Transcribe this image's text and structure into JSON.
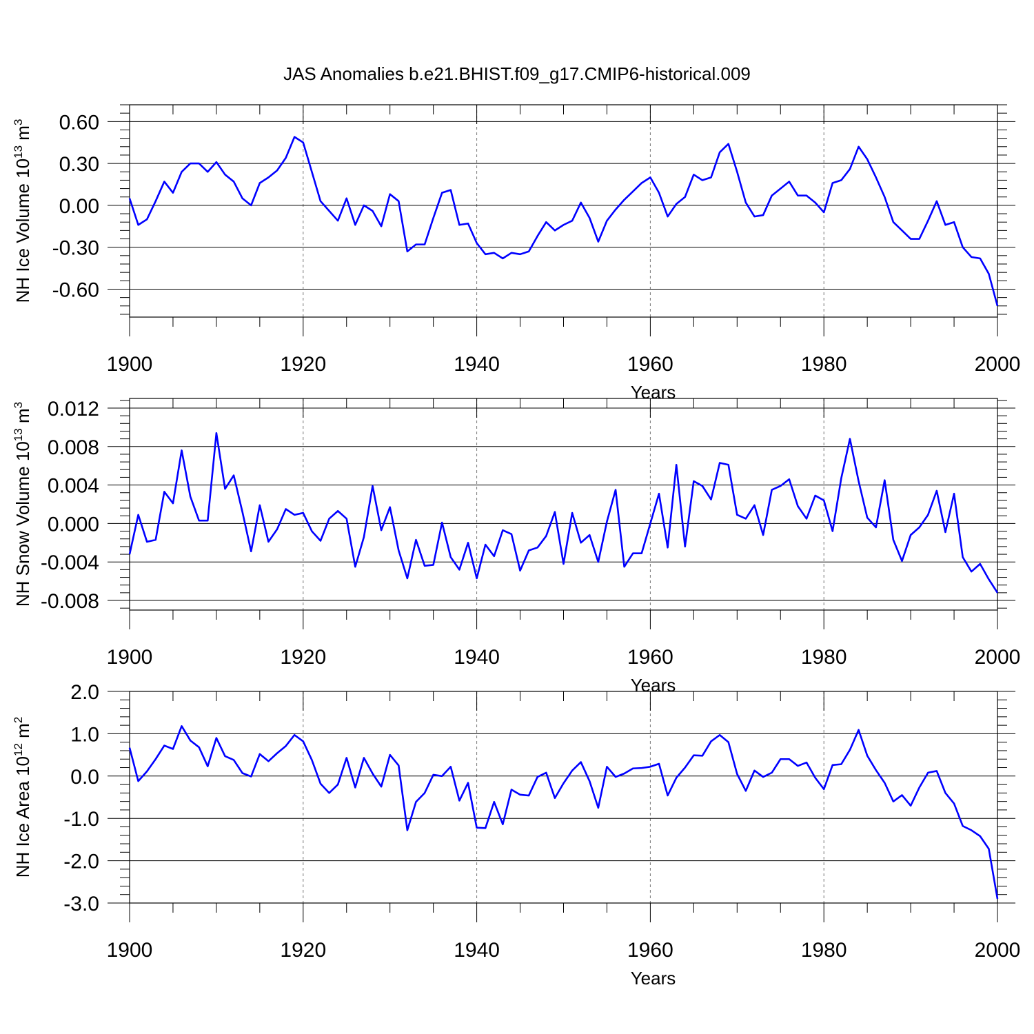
{
  "title": "JAS Anomalies b.e21.BHIST.f09_g17.CMIP6-historical.009",
  "colors": {
    "series": "#0000ff",
    "axis": "#000000",
    "grid": "#777777"
  },
  "chart_data": [
    {
      "type": "line",
      "name": "ice-volume",
      "ylabel": "NH Ice Volume 10",
      "ylabel_sup": "13",
      "ylabel_unit": " m",
      "ylabel_unit_sup": "3",
      "xlabel": "Years",
      "xlim": [
        1900,
        2000
      ],
      "ylim": [
        -0.8,
        0.72
      ],
      "x_ticks": [
        1900,
        1920,
        1940,
        1960,
        1980,
        2000
      ],
      "x_tick_labels": [
        "1900",
        "1920",
        "1940",
        "1960",
        "1980",
        "2000"
      ],
      "y_ticks": [
        0.6,
        0.3,
        0.0,
        -0.3,
        -0.6
      ],
      "y_tick_labels": [
        "0.60",
        "0.30",
        "0.00",
        "-0.30",
        "-0.60"
      ],
      "y_minor_step": 0.06,
      "start_year": 1900,
      "values": [
        0.05,
        -0.14,
        -0.1,
        0.03,
        0.17,
        0.09,
        0.24,
        0.3,
        0.3,
        0.24,
        0.31,
        0.22,
        0.17,
        0.05,
        0.0,
        0.16,
        0.2,
        0.25,
        0.34,
        0.49,
        0.45,
        0.24,
        0.03,
        -0.04,
        -0.11,
        0.05,
        -0.14,
        0.0,
        -0.04,
        -0.15,
        0.08,
        0.03,
        -0.33,
        -0.28,
        -0.28,
        -0.09,
        0.09,
        0.11,
        -0.14,
        -0.13,
        -0.27,
        -0.35,
        -0.34,
        -0.38,
        -0.34,
        -0.35,
        -0.33,
        -0.22,
        -0.12,
        -0.18,
        -0.14,
        -0.11,
        0.02,
        -0.09,
        -0.26,
        -0.11,
        -0.03,
        0.04,
        0.1,
        0.16,
        0.2,
        0.09,
        -0.08,
        0.01,
        0.06,
        0.22,
        0.18,
        0.2,
        0.38,
        0.44,
        0.24,
        0.02,
        -0.08,
        -0.07,
        0.07,
        0.12,
        0.17,
        0.07,
        0.07,
        0.02,
        -0.05,
        0.16,
        0.18,
        0.26,
        0.42,
        0.33,
        0.2,
        0.06,
        -0.12,
        -0.18,
        -0.24,
        -0.24,
        -0.11,
        0.03,
        -0.14,
        -0.12,
        -0.3,
        -0.37,
        -0.38,
        -0.49,
        -0.72
      ]
    },
    {
      "type": "line",
      "name": "snow-volume",
      "ylabel": "NH Snow Volume 10",
      "ylabel_sup": "13",
      "ylabel_unit": " m",
      "ylabel_unit_sup": "3",
      "xlabel": "Years",
      "xlim": [
        1900,
        2000
      ],
      "ylim": [
        -0.009,
        0.013
      ],
      "x_ticks": [
        1900,
        1920,
        1940,
        1960,
        1980,
        2000
      ],
      "x_tick_labels": [
        "1900",
        "1920",
        "1940",
        "1960",
        "1980",
        "2000"
      ],
      "y_ticks": [
        0.012,
        0.008,
        0.004,
        0.0,
        -0.004,
        -0.008
      ],
      "y_tick_labels": [
        "0.012",
        "0.008",
        "0.004",
        "0.000",
        "-0.004",
        "-0.008"
      ],
      "y_minor_step": 0.0008,
      "start_year": 1900,
      "values": [
        -0.0032,
        0.0009,
        -0.0019,
        -0.0017,
        0.0033,
        0.0021,
        0.0076,
        0.0028,
        0.0003,
        0.0003,
        0.0094,
        0.0036,
        0.005,
        0.0012,
        -0.0029,
        0.0019,
        -0.0019,
        -0.0006,
        0.0015,
        0.0009,
        0.0011,
        -0.0008,
        -0.0018,
        0.0005,
        0.0013,
        0.0005,
        -0.0045,
        -0.0014,
        0.0039,
        -0.0007,
        0.0017,
        -0.0028,
        -0.0057,
        -0.0017,
        -0.0044,
        -0.0043,
        0.0001,
        -0.0035,
        -0.0048,
        -0.002,
        -0.0057,
        -0.0022,
        -0.0034,
        -0.0007,
        -0.0011,
        -0.0049,
        -0.0028,
        -0.0025,
        -0.0013,
        0.0012,
        -0.0042,
        0.0011,
        -0.002,
        -0.0012,
        -0.004,
        0.0002,
        0.0035,
        -0.0045,
        -0.0031,
        -0.0031,
        0.0,
        0.0031,
        -0.0025,
        0.0061,
        -0.0024,
        0.0044,
        0.0039,
        0.0025,
        0.0063,
        0.0061,
        0.0009,
        0.0005,
        0.0019,
        -0.0012,
        0.0035,
        0.0039,
        0.0046,
        0.0018,
        0.0005,
        0.0029,
        0.0024,
        -0.0008,
        0.0047,
        0.0088,
        0.0044,
        0.0006,
        -0.0004,
        0.0045,
        -0.0017,
        -0.0039,
        -0.0012,
        -0.0004,
        0.0009,
        0.0034,
        -0.0009,
        0.0031,
        -0.0035,
        -0.005,
        -0.0042,
        -0.0058,
        -0.0072
      ]
    },
    {
      "type": "line",
      "name": "ice-area",
      "ylabel": "NH Ice Area 10",
      "ylabel_sup": "12",
      "ylabel_unit": " m",
      "ylabel_unit_sup": "2",
      "xlabel": "Years",
      "xlim": [
        1900,
        2000
      ],
      "ylim": [
        -3.0,
        2.0
      ],
      "x_ticks": [
        1900,
        1920,
        1940,
        1960,
        1980,
        2000
      ],
      "x_tick_labels": [
        "1900",
        "1920",
        "1940",
        "1960",
        "1980",
        "2000"
      ],
      "y_ticks": [
        2.0,
        1.0,
        0.0,
        -1.0,
        -2.0,
        -3.0
      ],
      "y_tick_labels": [
        "2.0",
        "1.0",
        "0.0",
        "-1.0",
        "-2.0",
        "-3.0"
      ],
      "y_minor_step": 0.2,
      "start_year": 1900,
      "values": [
        0.67,
        -0.12,
        0.11,
        0.4,
        0.72,
        0.64,
        1.18,
        0.84,
        0.68,
        0.23,
        0.9,
        0.47,
        0.38,
        0.07,
        -0.01,
        0.52,
        0.35,
        0.54,
        0.71,
        0.97,
        0.82,
        0.38,
        -0.18,
        -0.4,
        -0.2,
        0.43,
        -0.27,
        0.43,
        0.06,
        -0.25,
        0.5,
        0.25,
        -1.28,
        -0.61,
        -0.4,
        0.03,
        0.0,
        0.22,
        -0.58,
        -0.16,
        -1.22,
        -1.23,
        -0.61,
        -1.14,
        -0.32,
        -0.44,
        -0.46,
        -0.02,
        0.08,
        -0.52,
        -0.17,
        0.13,
        0.33,
        -0.12,
        -0.75,
        0.22,
        -0.02,
        0.06,
        0.18,
        0.19,
        0.22,
        0.29,
        -0.46,
        -0.04,
        0.2,
        0.49,
        0.48,
        0.82,
        0.97,
        0.8,
        0.05,
        -0.35,
        0.13,
        -0.02,
        0.08,
        0.4,
        0.4,
        0.24,
        0.32,
        -0.04,
        -0.31,
        0.26,
        0.28,
        0.62,
        1.09,
        0.48,
        0.14,
        -0.16,
        -0.6,
        -0.45,
        -0.7,
        -0.27,
        0.08,
        0.12,
        -0.4,
        -0.65,
        -1.18,
        -1.28,
        -1.42,
        -1.72,
        -2.9
      ]
    }
  ]
}
